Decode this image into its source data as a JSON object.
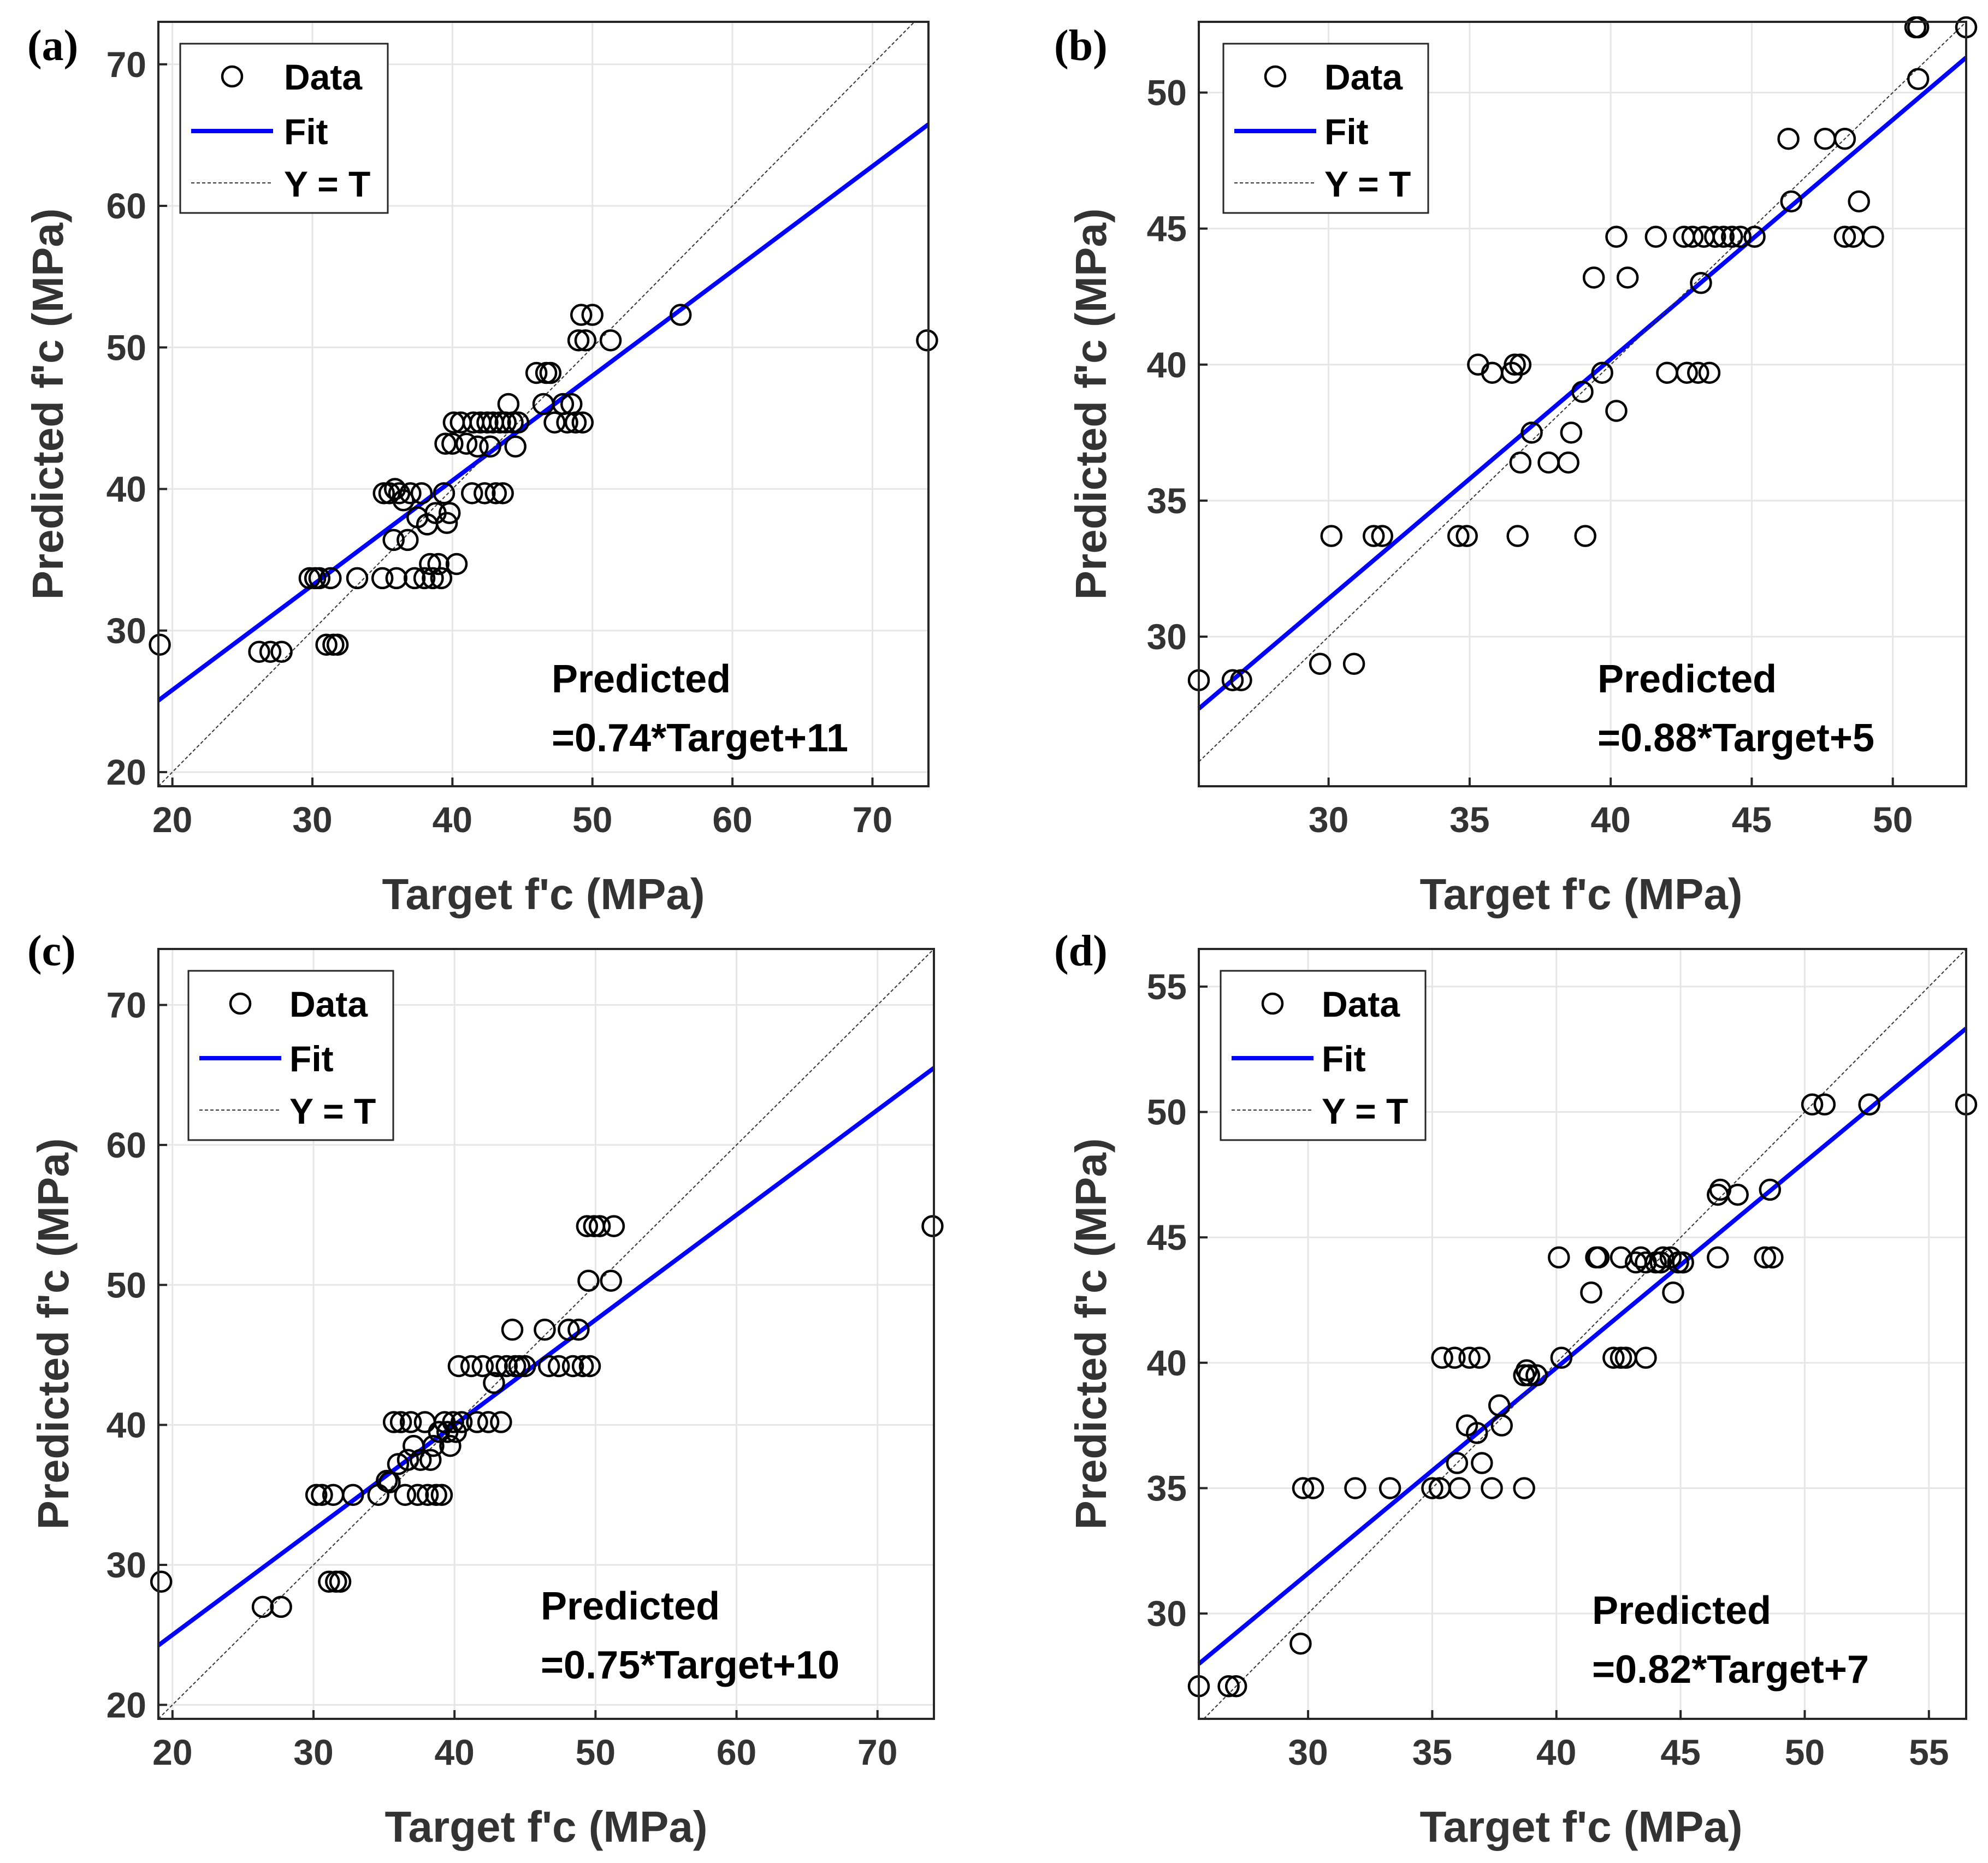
{
  "legend": {
    "data": "Data",
    "fit": "Fit",
    "yt": "Y = T"
  },
  "xlabel": "Target f'c (MPa)",
  "ylabel": "Predicted f'c (MPa)",
  "chart_data": [
    {
      "id": "a",
      "panel_label": "(a)",
      "type": "scatter",
      "xlim": [
        19,
        74
      ],
      "ylim": [
        19,
        73
      ],
      "xticks": [
        20,
        30,
        40,
        50,
        60,
        70
      ],
      "yticks": [
        20,
        30,
        40,
        50,
        60,
        70
      ],
      "fit": {
        "slope": 0.74,
        "intercept": 11
      },
      "equation": [
        "Predicted",
        "=0.74*Target+11"
      ],
      "points": [
        [
          19.1,
          29
        ],
        [
          26.2,
          28.5
        ],
        [
          27,
          28.5
        ],
        [
          27.8,
          28.5
        ],
        [
          29.8,
          33.7
        ],
        [
          30.2,
          33.7
        ],
        [
          30.5,
          33.7
        ],
        [
          31,
          29
        ],
        [
          31.3,
          33.7
        ],
        [
          31.5,
          29
        ],
        [
          31.8,
          29
        ],
        [
          33.2,
          33.7
        ],
        [
          35,
          33.7
        ],
        [
          35.1,
          39.7
        ],
        [
          35.5,
          39.7
        ],
        [
          35.8,
          36.4
        ],
        [
          35.9,
          40
        ],
        [
          36,
          33.7
        ],
        [
          36.2,
          39.7
        ],
        [
          36.5,
          39.2
        ],
        [
          36.8,
          36.4
        ],
        [
          37,
          39.7
        ],
        [
          37.3,
          33.7
        ],
        [
          37.5,
          38
        ],
        [
          37.8,
          39.7
        ],
        [
          38,
          33.7
        ],
        [
          38.2,
          37.5
        ],
        [
          38.4,
          34.7
        ],
        [
          38.6,
          33.7
        ],
        [
          38.8,
          38.3
        ],
        [
          39,
          34.7
        ],
        [
          39.2,
          33.7
        ],
        [
          39.4,
          39.7
        ],
        [
          39.5,
          43.2
        ],
        [
          39.6,
          37.6
        ],
        [
          39.8,
          38.3
        ],
        [
          40,
          43.2
        ],
        [
          40.1,
          44.7
        ],
        [
          40.3,
          34.7
        ],
        [
          40.6,
          44.7
        ],
        [
          41,
          43.2
        ],
        [
          41.4,
          39.7
        ],
        [
          41.5,
          44.7
        ],
        [
          41.8,
          43
        ],
        [
          42,
          44.7
        ],
        [
          42.3,
          39.7
        ],
        [
          42.5,
          44.7
        ],
        [
          42.7,
          43
        ],
        [
          42.9,
          44.7
        ],
        [
          43.1,
          39.7
        ],
        [
          43.4,
          44.7
        ],
        [
          43.6,
          39.7
        ],
        [
          43.8,
          44.7
        ],
        [
          44,
          46
        ],
        [
          44.3,
          44.7
        ],
        [
          44.5,
          43
        ],
        [
          44.7,
          44.7
        ],
        [
          46,
          48.2
        ],
        [
          46.5,
          46
        ],
        [
          46.7,
          48.2
        ],
        [
          47,
          48.2
        ],
        [
          47.3,
          44.7
        ],
        [
          47.9,
          46
        ],
        [
          48.2,
          44.7
        ],
        [
          48.5,
          46
        ],
        [
          48.8,
          44.7
        ],
        [
          49,
          50.5
        ],
        [
          49.2,
          52.3
        ],
        [
          49.3,
          44.7
        ],
        [
          49.5,
          50.5
        ],
        [
          50,
          52.3
        ],
        [
          51.3,
          50.5
        ],
        [
          56.3,
          52.3
        ],
        [
          73.9,
          50.5
        ]
      ]
    },
    {
      "id": "b",
      "panel_label": "(b)",
      "type": "scatter",
      "xlim": [
        25.4,
        52.6
      ],
      "ylim": [
        24.5,
        52.6
      ],
      "xticks": [
        30,
        35,
        40,
        45,
        50
      ],
      "yticks": [
        30,
        35,
        40,
        45,
        50
      ],
      "fit": {
        "slope": 0.88,
        "intercept": 5
      },
      "equation": [
        "Predicted",
        "=0.88*Target+5"
      ],
      "points": [
        [
          25.4,
          28.4
        ],
        [
          26.6,
          28.4
        ],
        [
          26.9,
          28.4
        ],
        [
          29.7,
          29
        ],
        [
          30.1,
          33.7
        ],
        [
          30.9,
          29
        ],
        [
          31.6,
          33.7
        ],
        [
          31.9,
          33.7
        ],
        [
          34.6,
          33.7
        ],
        [
          34.9,
          33.7
        ],
        [
          35.3,
          40
        ],
        [
          35.8,
          39.7
        ],
        [
          36.5,
          39.7
        ],
        [
          36.6,
          40
        ],
        [
          36.7,
          33.7
        ],
        [
          36.8,
          40
        ],
        [
          36.8,
          36.4
        ],
        [
          37.2,
          37.5
        ],
        [
          37.8,
          36.4
        ],
        [
          38.5,
          36.4
        ],
        [
          38.6,
          37.5
        ],
        [
          39,
          39
        ],
        [
          39.1,
          33.7
        ],
        [
          39.4,
          43.2
        ],
        [
          39.7,
          39.7
        ],
        [
          40.2,
          44.7
        ],
        [
          40.2,
          38.3
        ],
        [
          40.6,
          43.2
        ],
        [
          41.6,
          44.7
        ],
        [
          42,
          39.7
        ],
        [
          42.6,
          44.7
        ],
        [
          42.7,
          39.7
        ],
        [
          42.9,
          44.7
        ],
        [
          43.1,
          39.7
        ],
        [
          43.2,
          43
        ],
        [
          43.3,
          44.7
        ],
        [
          43.5,
          39.7
        ],
        [
          43.7,
          44.7
        ],
        [
          44,
          44.7
        ],
        [
          44.3,
          44.7
        ],
        [
          44.6,
          44.7
        ],
        [
          45.1,
          44.7
        ],
        [
          46.3,
          48.3
        ],
        [
          46.4,
          46
        ],
        [
          47.6,
          48.3
        ],
        [
          48.3,
          48.3
        ],
        [
          48.3,
          44.7
        ],
        [
          48.6,
          44.7
        ],
        [
          48.8,
          46
        ],
        [
          49.3,
          44.7
        ],
        [
          50.8,
          52.4
        ],
        [
          50.9,
          50.5
        ],
        [
          50.9,
          52.4
        ],
        [
          52.6,
          52.4
        ]
      ]
    },
    {
      "id": "c",
      "panel_label": "(c)",
      "type": "scatter",
      "xlim": [
        19,
        74
      ],
      "ylim": [
        19,
        74
      ],
      "xticks": [
        20,
        30,
        40,
        50,
        60,
        70
      ],
      "yticks": [
        20,
        30,
        40,
        50,
        60,
        70
      ],
      "fit": {
        "slope": 0.75,
        "intercept": 10
      },
      "equation": [
        "Predicted",
        "=0.75*Target+10"
      ],
      "points": [
        [
          19.2,
          28.8
        ],
        [
          26.4,
          27
        ],
        [
          27.7,
          27
        ],
        [
          30.2,
          35
        ],
        [
          30.6,
          35
        ],
        [
          31.1,
          28.8
        ],
        [
          31.4,
          35
        ],
        [
          31.6,
          28.8
        ],
        [
          31.9,
          28.8
        ],
        [
          32.8,
          35
        ],
        [
          34.6,
          35
        ],
        [
          35.2,
          36
        ],
        [
          35.4,
          35.9
        ],
        [
          35.7,
          40.2
        ],
        [
          36,
          37.2
        ],
        [
          36.2,
          40.2
        ],
        [
          36.5,
          35
        ],
        [
          36.7,
          37.5
        ],
        [
          36.9,
          40.2
        ],
        [
          37.1,
          38.5
        ],
        [
          37.4,
          35
        ],
        [
          37.6,
          37.5
        ],
        [
          37.9,
          40.2
        ],
        [
          38.1,
          35
        ],
        [
          38.3,
          37.5
        ],
        [
          38.5,
          38.5
        ],
        [
          38.7,
          35
        ],
        [
          38.9,
          39.5
        ],
        [
          39.1,
          35
        ],
        [
          39.3,
          40.2
        ],
        [
          39.5,
          39.5
        ],
        [
          39.7,
          38.5
        ],
        [
          39.9,
          40.2
        ],
        [
          40.1,
          39.5
        ],
        [
          40.3,
          44.2
        ],
        [
          40.5,
          40.2
        ],
        [
          41.2,
          44.2
        ],
        [
          41.6,
          40.2
        ],
        [
          42,
          44.2
        ],
        [
          42.4,
          40.2
        ],
        [
          42.8,
          43
        ],
        [
          43,
          44.2
        ],
        [
          43.3,
          40.2
        ],
        [
          43.7,
          44.2
        ],
        [
          44.1,
          46.8
        ],
        [
          44.3,
          44.2
        ],
        [
          44.6,
          44.2
        ],
        [
          45,
          44.2
        ],
        [
          46.4,
          46.8
        ],
        [
          46.7,
          44.2
        ],
        [
          47.4,
          44.2
        ],
        [
          48.1,
          46.8
        ],
        [
          48.4,
          44.2
        ],
        [
          48.8,
          46.8
        ],
        [
          49.1,
          44.2
        ],
        [
          49.4,
          54.2
        ],
        [
          49.5,
          50.3
        ],
        [
          49.6,
          44.2
        ],
        [
          49.9,
          54.2
        ],
        [
          50.3,
          54.2
        ],
        [
          51.1,
          50.3
        ],
        [
          51.3,
          54.2
        ],
        [
          73.9,
          54.2
        ]
      ]
    },
    {
      "id": "d",
      "panel_label": "(d)",
      "type": "scatter",
      "xlim": [
        25.6,
        56.5
      ],
      "ylim": [
        25.8,
        56.5
      ],
      "xticks": [
        30,
        35,
        40,
        45,
        50,
        55
      ],
      "yticks": [
        30,
        35,
        40,
        45,
        50,
        55
      ],
      "fit": {
        "slope": 0.82,
        "intercept": 7
      },
      "equation": [
        "Predicted",
        "=0.82*Target+7"
      ],
      "points": [
        [
          25.6,
          27.1
        ],
        [
          26.8,
          27.1
        ],
        [
          27.1,
          27.1
        ],
        [
          29.7,
          28.8
        ],
        [
          29.8,
          35
        ],
        [
          30.2,
          35
        ],
        [
          31.9,
          35
        ],
        [
          33.3,
          35
        ],
        [
          35,
          35
        ],
        [
          35.3,
          35
        ],
        [
          35.4,
          40.2
        ],
        [
          35.9,
          40.2
        ],
        [
          36,
          36
        ],
        [
          36.1,
          35
        ],
        [
          36.4,
          37.5
        ],
        [
          36.5,
          40.2
        ],
        [
          36.8,
          37.2
        ],
        [
          36.9,
          40.2
        ],
        [
          37,
          36
        ],
        [
          37.4,
          35
        ],
        [
          37.7,
          38.3
        ],
        [
          37.8,
          37.5
        ],
        [
          38.7,
          39.5
        ],
        [
          38.7,
          35
        ],
        [
          38.8,
          39.7
        ],
        [
          38.9,
          39.5
        ],
        [
          39.2,
          39.5
        ],
        [
          40.1,
          44.2
        ],
        [
          40.2,
          40.2
        ],
        [
          41.4,
          42.8
        ],
        [
          41.6,
          44.2
        ],
        [
          41.7,
          44.2
        ],
        [
          42.3,
          40.2
        ],
        [
          42.6,
          40.2
        ],
        [
          42.6,
          44.2
        ],
        [
          42.8,
          40.2
        ],
        [
          43.2,
          44
        ],
        [
          43.4,
          44.2
        ],
        [
          43.6,
          44
        ],
        [
          43.6,
          40.2
        ],
        [
          44,
          44
        ],
        [
          44.2,
          44
        ],
        [
          44.3,
          44.2
        ],
        [
          44.6,
          44.2
        ],
        [
          44.7,
          42.8
        ],
        [
          44.9,
          44
        ],
        [
          45.1,
          44
        ],
        [
          46.5,
          46.7
        ],
        [
          46.5,
          44.2
        ],
        [
          46.6,
          46.9
        ],
        [
          47.3,
          46.7
        ],
        [
          48.4,
          44.2
        ],
        [
          48.6,
          46.9
        ],
        [
          48.7,
          44.2
        ],
        [
          50.3,
          50.3
        ],
        [
          50.8,
          50.3
        ],
        [
          52.6,
          50.3
        ],
        [
          56.5,
          50.3
        ]
      ]
    }
  ]
}
